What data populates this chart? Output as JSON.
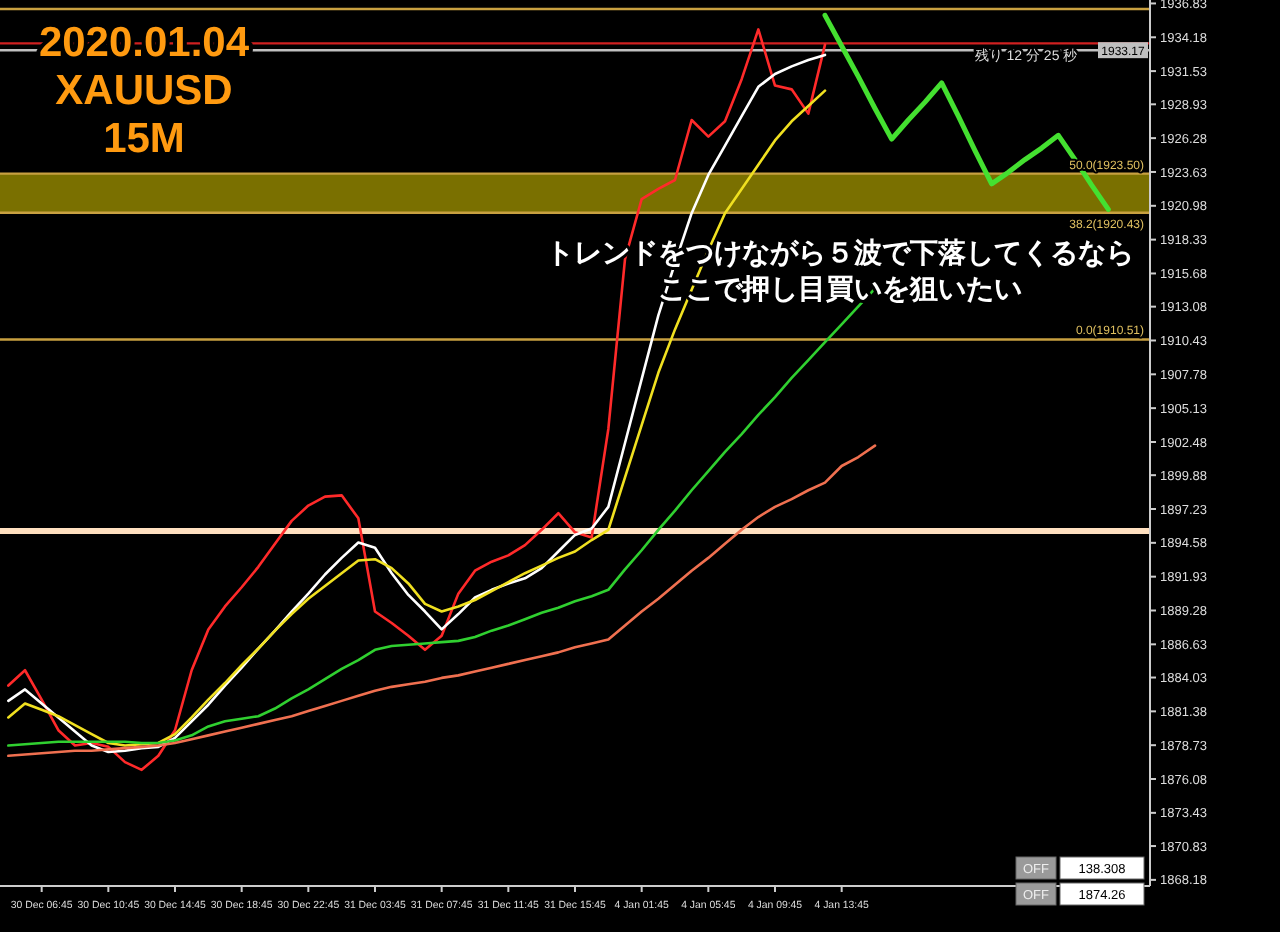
{
  "chart_data": {
    "type": "line",
    "title": "2020.01.04 XAUUSD 15M",
    "categories": [
      null,
      null,
      "30 Dec 06:45",
      null,
      null,
      null,
      "30 Dec 10:45",
      null,
      null,
      null,
      "30 Dec 14:45",
      null,
      null,
      null,
      "30 Dec 18:45",
      null,
      null,
      null,
      "30 Dec 22:45",
      null,
      null,
      null,
      "31 Dec 03:45",
      null,
      null,
      null,
      "31 Dec 07:45",
      null,
      null,
      null,
      "31 Dec 11:45",
      null,
      null,
      null,
      "31 Dec 15:45",
      null,
      null,
      null,
      "4 Jan 01:45",
      null,
      null,
      null,
      "4 Jan 05:45",
      null,
      null,
      null,
      "4 Jan 09:45",
      null,
      null,
      null,
      "4 Jan 13:45",
      null,
      null,
      null,
      null,
      null,
      null,
      null,
      null,
      null,
      null,
      null,
      null,
      null,
      null,
      null,
      null,
      null,
      null
    ],
    "ylim": [
      1867.7,
      1937.1
    ],
    "yticks": [
      1936.83,
      1934.18,
      1931.53,
      1928.93,
      1926.28,
      1923.63,
      1920.98,
      1918.33,
      1915.68,
      1913.08,
      1910.43,
      1907.78,
      1905.13,
      1902.48,
      1899.88,
      1897.23,
      1894.58,
      1891.93,
      1889.28,
      1886.63,
      1884.03,
      1881.38,
      1878.73,
      1876.08,
      1873.43,
      1870.83,
      1868.18
    ],
    "marker": "none",
    "series": [
      {
        "color": "#ff2a2a",
        "values": [
          1883.4,
          1884.6,
          1882.3,
          1879.9,
          1878.7,
          1878.9,
          1878.6,
          1877.4,
          1876.8,
          1877.9,
          1879.9,
          1884.6,
          1887.8,
          1889.6,
          1891.1,
          1892.7,
          1894.5,
          1896.3,
          1897.5,
          1898.2,
          1898.3,
          1896.5,
          1889.2,
          1888.3,
          1887.3,
          1886.2,
          1887.3,
          1890.6,
          1892.4,
          1893.1,
          1893.6,
          1894.4,
          1895.6,
          1896.9,
          1895.4,
          1895.0,
          1903.5,
          1916.8,
          1921.5,
          1922.3,
          1923.0,
          1927.7,
          1926.4,
          1927.6,
          1930.9,
          1934.8,
          1930.4,
          1930.1,
          1928.2,
          1933.6,
          null,
          null,
          null,
          null,
          null,
          null,
          null,
          null,
          null,
          null,
          null,
          null,
          null,
          null,
          null,
          null,
          null,
          null,
          null
        ]
      },
      {
        "color": "#ffffff",
        "values": [
          1882.2,
          1883.1,
          1882.0,
          1880.9,
          1879.8,
          1878.7,
          1878.2,
          1878.3,
          1878.5,
          1878.6,
          1879.3,
          1880.6,
          1881.9,
          1883.4,
          1884.8,
          1886.3,
          1887.7,
          1889.2,
          1890.6,
          1892.1,
          1893.4,
          1894.6,
          1894.2,
          1892.2,
          1890.5,
          1889.2,
          1887.8,
          1889.0,
          1890.3,
          1890.9,
          1891.4,
          1891.8,
          1892.6,
          1893.9,
          1895.2,
          1895.7,
          1897.4,
          1902.4,
          1907.4,
          1912.4,
          1916.5,
          1920.4,
          1923.4,
          1925.7,
          1928.0,
          1930.3,
          1931.3,
          1931.9,
          1932.4,
          1932.8,
          null,
          null,
          null,
          null,
          null,
          null,
          null,
          null,
          null,
          null,
          null,
          null,
          null,
          null,
          null,
          null,
          null,
          null,
          null
        ]
      },
      {
        "color": "#f0e020",
        "values": [
          1880.9,
          1882.0,
          1881.5,
          1881.0,
          1880.3,
          1879.6,
          1878.9,
          1878.7,
          1878.8,
          1878.9,
          1879.6,
          1880.9,
          1882.3,
          1883.6,
          1885.0,
          1886.3,
          1887.7,
          1889.0,
          1890.2,
          1891.2,
          1892.2,
          1893.2,
          1893.3,
          1892.6,
          1891.4,
          1889.8,
          1889.2,
          1889.6,
          1890.1,
          1890.8,
          1891.5,
          1892.2,
          1892.8,
          1893.4,
          1893.9,
          1894.8,
          1895.6,
          1899.7,
          1903.8,
          1907.9,
          1911.3,
          1914.4,
          1917.5,
          1920.4,
          1922.3,
          1924.2,
          1926.1,
          1927.6,
          1928.8,
          1930.0,
          null,
          null,
          null,
          null,
          null,
          null,
          null,
          null,
          null,
          null,
          null,
          null,
          null,
          null,
          null,
          null,
          null,
          null,
          null
        ]
      },
      {
        "color": "#30d030",
        "values": [
          1878.7,
          1878.8,
          1878.9,
          1879.0,
          1879.0,
          1879.0,
          1879.0,
          1879.0,
          1878.9,
          1878.9,
          1879.1,
          1879.5,
          1880.2,
          1880.6,
          1880.8,
          1881.0,
          1881.6,
          1882.4,
          1883.1,
          1883.9,
          1884.7,
          1885.4,
          1886.2,
          1886.5,
          1886.6,
          1886.7,
          1886.8,
          1886.9,
          1887.2,
          1887.7,
          1888.1,
          1888.6,
          1889.1,
          1889.5,
          1890.0,
          1890.4,
          1890.9,
          1892.5,
          1894.0,
          1895.6,
          1897.1,
          1898.7,
          1900.2,
          1901.7,
          1903.1,
          1904.6,
          1906.0,
          1907.5,
          1908.9,
          1910.3,
          1911.7,
          1913.1,
          1914.5,
          null,
          null,
          null,
          null,
          null,
          null,
          null,
          null,
          null,
          null,
          null,
          null,
          null,
          null,
          null,
          null
        ]
      },
      {
        "color": "#f07050",
        "values": [
          1877.9,
          1878.0,
          1878.1,
          1878.2,
          1878.3,
          1878.3,
          1878.4,
          1878.5,
          1878.6,
          1878.7,
          1878.9,
          1879.2,
          1879.5,
          1879.8,
          1880.1,
          1880.4,
          1880.7,
          1881.0,
          1881.4,
          1881.8,
          1882.2,
          1882.6,
          1883.0,
          1883.3,
          1883.5,
          1883.7,
          1884.0,
          1884.2,
          1884.5,
          1884.8,
          1885.1,
          1885.4,
          1885.7,
          1886.0,
          1886.4,
          1886.7,
          1887.0,
          1888.1,
          1889.2,
          1890.2,
          1891.3,
          1892.4,
          1893.4,
          1894.5,
          1895.6,
          1896.6,
          1897.4,
          1898.0,
          1898.7,
          1899.3,
          1900.6,
          1901.3,
          1902.2,
          null,
          null,
          null,
          null,
          null,
          null,
          null,
          null,
          null,
          null,
          null,
          null,
          null,
          null,
          null,
          null
        ]
      },
      {
        "color": "#44e030",
        "values": [
          null,
          null,
          null,
          null,
          null,
          null,
          null,
          null,
          null,
          null,
          null,
          null,
          null,
          null,
          null,
          null,
          null,
          null,
          null,
          null,
          null,
          null,
          null,
          null,
          null,
          null,
          null,
          null,
          null,
          null,
          null,
          null,
          null,
          null,
          null,
          null,
          null,
          null,
          null,
          null,
          null,
          null,
          null,
          null,
          null,
          null,
          null,
          null,
          null,
          1935.9,
          1933.5,
          1931.1,
          1928.6,
          1926.2,
          1927.7,
          1929.1,
          1930.6,
          1928.0,
          1925.3,
          1922.7,
          1923.6,
          1924.6,
          1925.5,
          1926.5,
          1924.6,
          1922.6,
          1920.7,
          null,
          null
        ]
      }
    ],
    "ref_lines": [
      {
        "axis": "y",
        "value": 1936.4,
        "label": null,
        "color": "#c8a040"
      },
      {
        "axis": "y",
        "value": 1933.7,
        "label": null,
        "color": "#d02020"
      },
      {
        "axis": "y",
        "value": 1933.17,
        "label": "1933.17",
        "color": "#c0c0c0"
      },
      {
        "axis": "y",
        "value": 1923.5,
        "label": "50.0(1923.50)",
        "color": "#c8a040"
      },
      {
        "axis": "y",
        "value": 1920.43,
        "label": "38.2(1920.43)",
        "color": "#c8a040"
      },
      {
        "axis": "y",
        "value": 1910.51,
        "label": "0.0(1910.51)",
        "color": "#c8a040"
      },
      {
        "axis": "y",
        "value": 1895.5,
        "label": null,
        "color": "#ffe0c0"
      }
    ],
    "bands": [
      {
        "axis": "y",
        "from": 1920.43,
        "to": 1923.5,
        "label": null,
        "color": "#7a7000"
      }
    ],
    "annotations": [
      "トレンドをつけながら５波で下落してくるなら",
      "ここで押し目買いを狙いたい",
      "残り 12 分 25 秒",
      "OFF",
      "138.308",
      "OFF",
      "1874.26"
    ]
  }
}
